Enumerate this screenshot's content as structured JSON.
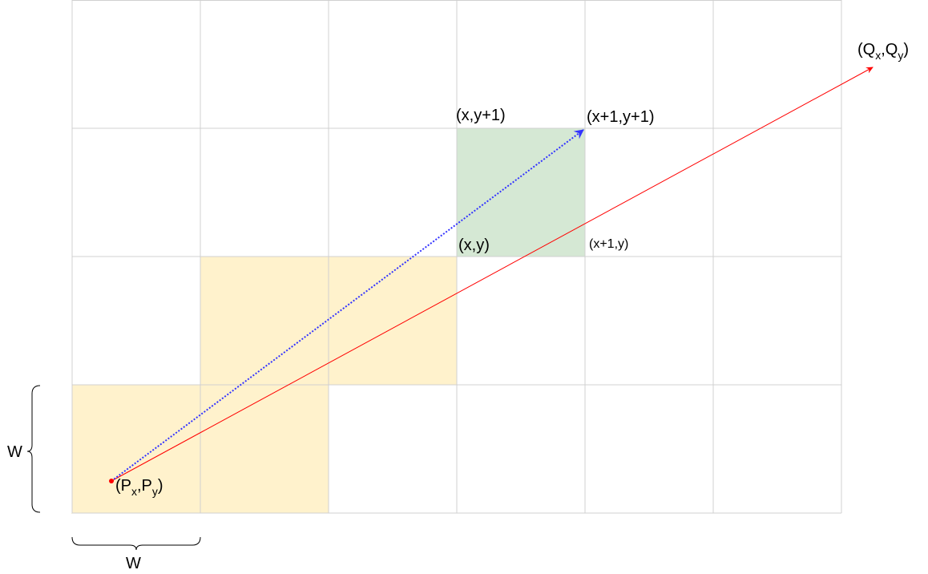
{
  "labels": {
    "q": {
      "base": "(Q",
      "sub1": "x",
      "mid": ",Q",
      "sub2": "y",
      "end": ")"
    },
    "p": {
      "base": "(P",
      "sub1": "x",
      "mid": ",P",
      "sub2": "y",
      "end": ")"
    },
    "cell_top_left": "(x,y+1)",
    "cell_top_right": "(x+1,y+1)",
    "cell_bottom_left": "(x,y)",
    "cell_bottom_right": "(x+1,y)",
    "width_vertical": "W",
    "width_horizontal": "W"
  },
  "colors": {
    "grid_line": "#d0d0d0",
    "yellow_fill": "#fff2cc",
    "yellow_stroke": "#d6b656",
    "green_fill": "#d5e8d4",
    "green_stroke": "#82b366",
    "ray_red": "#ff0000",
    "ray_blue": "#3333ff",
    "brace": "#000000"
  },
  "grid": {
    "columns": 6,
    "rows": 4
  },
  "highlighted_cells": {
    "yellow": [
      [
        0,
        0
      ],
      [
        1,
        0
      ],
      [
        1,
        1
      ],
      [
        2,
        1
      ]
    ],
    "green": [
      [
        3,
        2
      ]
    ]
  }
}
